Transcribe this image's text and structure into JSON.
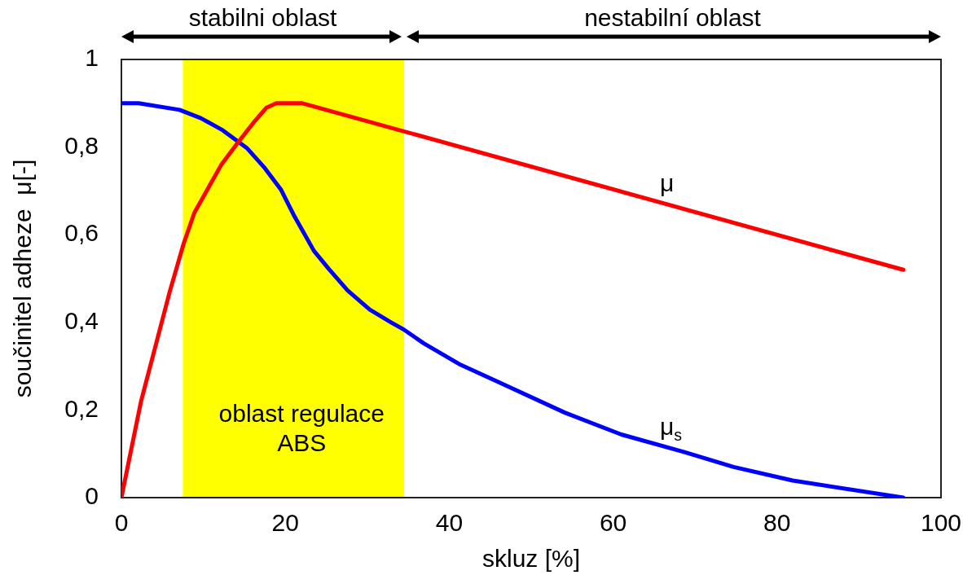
{
  "chart_data": {
    "type": "line",
    "xlabel": "skluz [%]",
    "ylabel": "součinitel adheze  μ[-]",
    "xlim": [
      0,
      100
    ],
    "xticks": [
      0,
      20,
      40,
      60,
      80,
      100
    ],
    "ylim": [
      0,
      1
    ],
    "yticks": [
      0,
      {
        "value": 0.2,
        "label": "0,2"
      },
      {
        "value": 0.4,
        "label": "0,4"
      },
      {
        "value": 0.6,
        "label": "0,6"
      },
      {
        "value": 0.8,
        "label": "0,8"
      },
      1
    ],
    "series": [
      {
        "name": "μ",
        "color": "#ff0000",
        "x": [
          0,
          2.4,
          5.9,
          7.6,
          8.9,
          12.2,
          14.2,
          16.3,
          17.7,
          18.9,
          22.1,
          95.4
        ],
        "values": [
          0,
          0.22,
          0.47,
          0.58,
          0.65,
          0.76,
          0.81,
          0.86,
          0.89,
          0.9,
          0.9,
          0.52
        ]
      },
      {
        "name": "μ$_{s}$",
        "color": "#0000ff",
        "x": [
          0,
          2.1,
          7.1,
          9.7,
          12.4,
          15.3,
          17.5,
          19.5,
          21.0,
          23.5,
          25.3,
          27.6,
          30.3,
          32.9,
          34.5,
          36.9,
          41.2,
          46.2,
          54.1,
          61.0,
          68.7,
          74.7,
          81.9,
          95.4
        ],
        "values": [
          0.9,
          0.9,
          0.885,
          0.866,
          0.838,
          0.798,
          0.752,
          0.702,
          0.646,
          0.563,
          0.522,
          0.473,
          0.429,
          0.4,
          0.383,
          0.352,
          0.305,
          0.262,
          0.194,
          0.144,
          0.104,
          0.07,
          0.039,
          0
        ]
      }
    ],
    "bands": [
      {
        "axis": "x",
        "from": 7.5,
        "to": 34.5,
        "label": "oblast regulace ABS",
        "color": "#ffff00"
      }
    ],
    "annotations": [
      "stabilni oblast",
      "nestabilní oblast"
    ]
  }
}
